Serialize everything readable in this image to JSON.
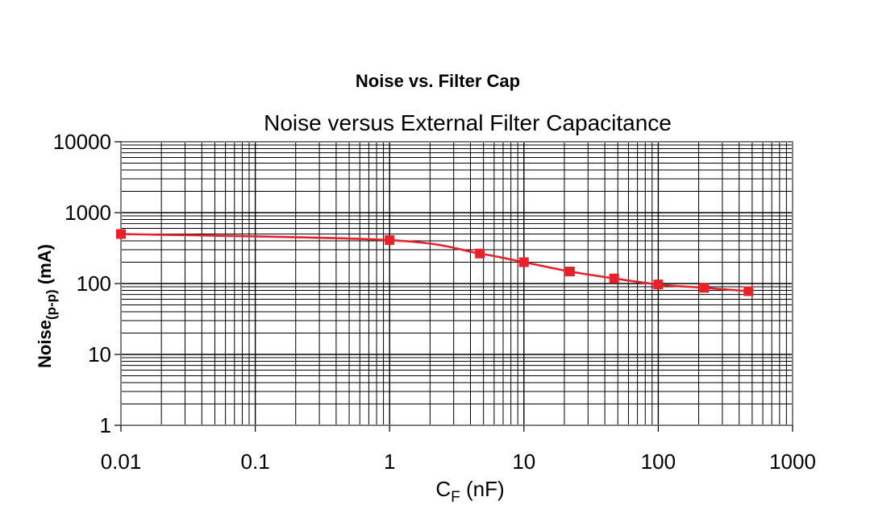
{
  "caption": "Noise vs. Filter Cap",
  "chart_data": {
    "type": "line",
    "title": "Noise versus External Filter Capacitance",
    "xlabel": {
      "main": "C",
      "sub": "F",
      "rest": " (nF)"
    },
    "ylabel": {
      "main": "Noise",
      "sub": "(p-p)",
      "rest": " (mA)"
    },
    "xscale": "log",
    "yscale": "log",
    "xlim": [
      0.01,
      1000
    ],
    "ylim": [
      1,
      10000
    ],
    "xticks": [
      "0.01",
      "0.1",
      "1",
      "10",
      "100",
      "1000"
    ],
    "yticks": [
      "1",
      "10",
      "100",
      "1000",
      "10000"
    ],
    "grid": true,
    "legend": "none",
    "series": [
      {
        "color": "#e8212a",
        "marker": "square",
        "x": [
          0.01,
          1,
          4.7,
          10,
          22,
          47,
          100,
          220,
          470
        ],
        "y": [
          500,
          410,
          265,
          200,
          148,
          118,
          97,
          87,
          78
        ]
      }
    ]
  }
}
